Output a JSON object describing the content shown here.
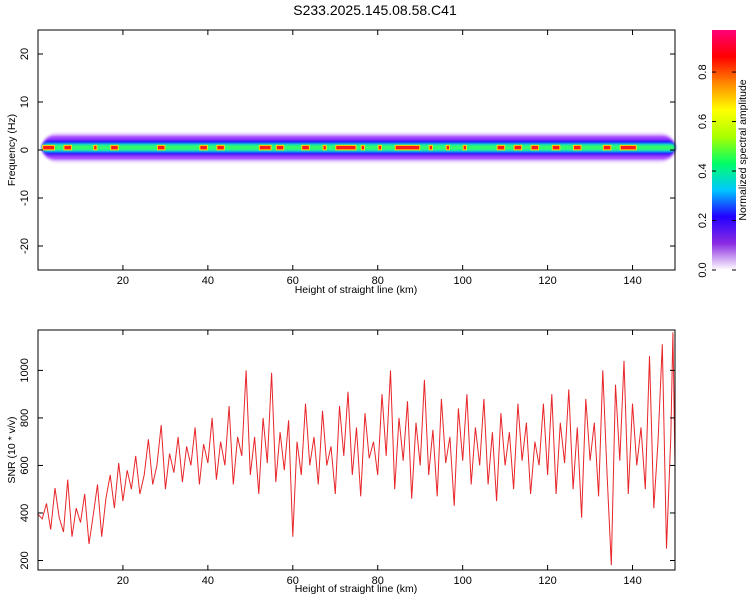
{
  "title": "S233.2025.145.08.58.C41",
  "colors": {
    "line": "#e8262a",
    "axis": "#000000"
  },
  "chart_data": [
    {
      "type": "heatmap",
      "xlabel": "Height of straight line (km)",
      "ylabel": "Frequency (Hz)",
      "xlim": [
        0,
        150
      ],
      "ylim": [
        -25,
        25
      ],
      "xticks": [
        20,
        40,
        60,
        80,
        100,
        120,
        140
      ],
      "yticks": [
        -20,
        -10,
        0,
        10,
        20
      ],
      "ytick_labels": [
        "-20",
        "-10",
        "0",
        "10",
        "20"
      ],
      "colorbar": {
        "label": "Normalized spectral amplitude",
        "range": [
          0,
          0.97
        ],
        "ticks": [
          0.0,
          0.2,
          0.4,
          0.6,
          0.8
        ],
        "tick_labels": [
          "0.0",
          "0.2",
          "0.4",
          "0.6",
          "0.8"
        ],
        "colors": [
          "#ffffff",
          "#8a2be2",
          "#2200ff",
          "#00c8ff",
          "#00ff66",
          "#aaff00",
          "#ffff00",
          "#ff8800",
          "#ff0000",
          "#ff0077"
        ]
      },
      "band": {
        "center_hz": 0.5,
        "core_halfwidth_hz": 0.6,
        "halo_halfwidth_hz": 2.5,
        "peak_segments_km": [
          [
            1,
            4
          ],
          [
            6,
            8
          ],
          [
            13,
            14
          ],
          [
            17,
            19
          ],
          [
            28,
            30
          ],
          [
            38,
            40
          ],
          [
            42,
            44
          ],
          [
            52,
            55
          ],
          [
            56,
            58
          ],
          [
            62,
            64
          ],
          [
            67,
            68
          ],
          [
            70,
            75
          ],
          [
            76,
            77
          ],
          [
            80,
            81
          ],
          [
            84,
            90
          ],
          [
            92,
            93
          ],
          [
            96,
            97
          ],
          [
            100,
            101
          ],
          [
            108,
            110
          ],
          [
            112,
            114
          ],
          [
            116,
            118
          ],
          [
            121,
            123
          ],
          [
            126,
            128
          ],
          [
            133,
            135
          ],
          [
            137,
            141
          ]
        ]
      }
    },
    {
      "type": "line",
      "xlabel": "Height of straight line (km)",
      "ylabel": "SNR (10 * v/v)",
      "xlim": [
        0,
        150
      ],
      "ylim": [
        160,
        1170
      ],
      "xticks": [
        20,
        40,
        60,
        80,
        100,
        120,
        140
      ],
      "yticks": [
        200,
        400,
        600,
        800,
        1000
      ],
      "series": [
        {
          "values": [
            [
              0.0,
              395
            ],
            [
              1.0,
              375
            ],
            [
              2.0,
              440
            ],
            [
              3.0,
              330
            ],
            [
              4.0,
              505
            ],
            [
              5.0,
              380
            ],
            [
              6.0,
              320
            ],
            [
              7.0,
              540
            ],
            [
              8.0,
              300
            ],
            [
              9.0,
              420
            ],
            [
              10.0,
              360
            ],
            [
              11.0,
              480
            ],
            [
              12.0,
              270
            ],
            [
              13.0,
              390
            ],
            [
              14.0,
              520
            ],
            [
              15.0,
              300
            ],
            [
              16.0,
              460
            ],
            [
              17.0,
              560
            ],
            [
              18.0,
              420
            ],
            [
              19.0,
              610
            ],
            [
              20.0,
              450
            ],
            [
              21.0,
              580
            ],
            [
              22.0,
              500
            ],
            [
              23.0,
              640
            ],
            [
              24.0,
              480
            ],
            [
              25.0,
              560
            ],
            [
              26.0,
              710
            ],
            [
              27.0,
              520
            ],
            [
              28.0,
              600
            ],
            [
              29.0,
              770
            ],
            [
              30.0,
              500
            ],
            [
              31.0,
              650
            ],
            [
              32.0,
              570
            ],
            [
              33.0,
              720
            ],
            [
              34.0,
              530
            ],
            [
              35.0,
              680
            ],
            [
              36.0,
              600
            ],
            [
              37.0,
              760
            ],
            [
              38.0,
              520
            ],
            [
              39.0,
              690
            ],
            [
              40.0,
              610
            ],
            [
              41.0,
              800
            ],
            [
              42.0,
              540
            ],
            [
              43.0,
              700
            ],
            [
              44.0,
              600
            ],
            [
              45.0,
              850
            ],
            [
              46.0,
              520
            ],
            [
              47.0,
              720
            ],
            [
              48.0,
              640
            ],
            [
              49.0,
              1000
            ],
            [
              50.0,
              560
            ],
            [
              51.0,
              720
            ],
            [
              52.0,
              480
            ],
            [
              53.0,
              800
            ],
            [
              54.0,
              610
            ],
            [
              55.0,
              990
            ],
            [
              56.0,
              530
            ],
            [
              57.0,
              740
            ],
            [
              58.0,
              580
            ],
            [
              59.0,
              790
            ],
            [
              60.0,
              300
            ],
            [
              61.0,
              700
            ],
            [
              62.0,
              560
            ],
            [
              63.0,
              860
            ],
            [
              64.0,
              600
            ],
            [
              65.0,
              720
            ],
            [
              66.0,
              520
            ],
            [
              67.0,
              830
            ],
            [
              68.0,
              600
            ],
            [
              69.0,
              680
            ],
            [
              70.0,
              480
            ],
            [
              71.0,
              850
            ],
            [
              72.0,
              640
            ],
            [
              73.0,
              910
            ],
            [
              74.0,
              560
            ],
            [
              75.0,
              760
            ],
            [
              76.0,
              470
            ],
            [
              77.0,
              820
            ],
            [
              78.0,
              630
            ],
            [
              79.0,
              700
            ],
            [
              80.0,
              560
            ],
            [
              81.0,
              900
            ],
            [
              82.0,
              640
            ],
            [
              83.0,
              1000
            ],
            [
              84.0,
              500
            ],
            [
              85.0,
              800
            ],
            [
              86.0,
              620
            ],
            [
              87.0,
              870
            ],
            [
              88.0,
              460
            ],
            [
              89.0,
              780
            ],
            [
              90.0,
              600
            ],
            [
              91.0,
              960
            ],
            [
              92.0,
              560
            ],
            [
              93.0,
              750
            ],
            [
              94.0,
              470
            ],
            [
              95.0,
              880
            ],
            [
              96.0,
              610
            ],
            [
              97.0,
              720
            ],
            [
              98.0,
              430
            ],
            [
              99.0,
              840
            ],
            [
              100.0,
              620
            ],
            [
              101.0,
              900
            ],
            [
              102.0,
              520
            ],
            [
              103.0,
              760
            ],
            [
              104.0,
              600
            ],
            [
              105.0,
              880
            ],
            [
              106.0,
              520
            ],
            [
              107.0,
              740
            ],
            [
              108.0,
              450
            ],
            [
              109.0,
              820
            ],
            [
              110.0,
              600
            ],
            [
              111.0,
              740
            ],
            [
              112.0,
              500
            ],
            [
              113.0,
              860
            ],
            [
              114.0,
              620
            ],
            [
              115.0,
              780
            ],
            [
              116.0,
              480
            ],
            [
              117.0,
              700
            ],
            [
              118.0,
              600
            ],
            [
              119.0,
              860
            ],
            [
              120.0,
              560
            ],
            [
              121.0,
              900
            ],
            [
              122.0,
              480
            ],
            [
              123.0,
              780
            ],
            [
              124.0,
              610
            ],
            [
              125.0,
              920
            ],
            [
              126.0,
              500
            ],
            [
              127.0,
              760
            ],
            [
              128.0,
              380
            ],
            [
              129.0,
              880
            ],
            [
              130.0,
              620
            ],
            [
              131.0,
              780
            ],
            [
              132.0,
              470
            ],
            [
              133.0,
              1000
            ],
            [
              134.0,
              560
            ],
            [
              135.0,
              180
            ],
            [
              136.0,
              940
            ],
            [
              137.0,
              620
            ],
            [
              138.0,
              1040
            ],
            [
              139.0,
              480
            ],
            [
              140.0,
              860
            ],
            [
              141.0,
              600
            ],
            [
              142.0,
              760
            ],
            [
              143.0,
              500
            ],
            [
              144.0,
              1060
            ],
            [
              145.0,
              420
            ],
            [
              146.0,
              700
            ],
            [
              147.0,
              1110
            ],
            [
              148.0,
              250
            ],
            [
              149.0,
              720
            ],
            [
              149.5,
              1160
            ],
            [
              150.0,
              600
            ]
          ]
        }
      ]
    }
  ]
}
